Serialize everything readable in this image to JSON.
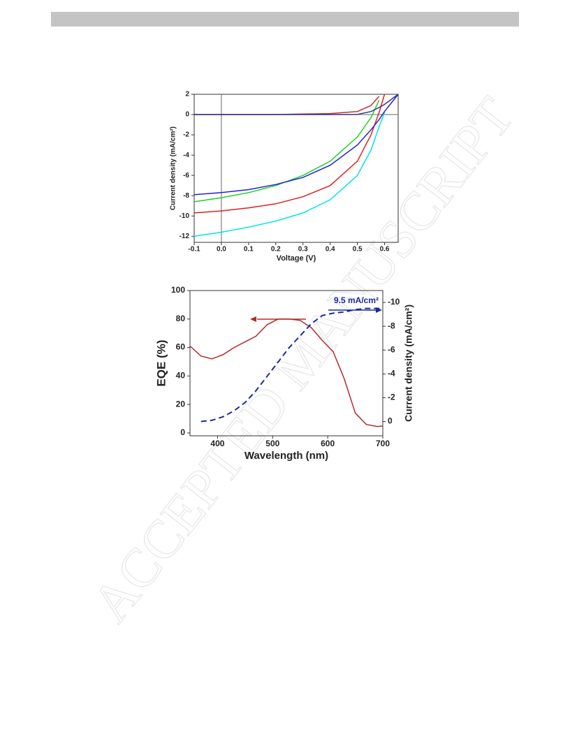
{
  "watermark": "ACCEPTED MANUSCRIPT",
  "chart_data": [
    {
      "type": "line",
      "x_label": "Voltage (V)",
      "y_label": "Current density (mA/cm²)",
      "x": [
        -0.1,
        0,
        0.1,
        0.2,
        0.3,
        0.4,
        0.5,
        0.55,
        0.58,
        0.6,
        0.65
      ],
      "series": [
        {
          "color": "#00e5e5",
          "values": [
            -12.0,
            -11.6,
            -11.1,
            -10.5,
            -9.7,
            -8.4,
            -6.0,
            -3.5,
            -1.2,
            0.2,
            null
          ]
        },
        {
          "color": "#e02020",
          "values": [
            -9.7,
            -9.5,
            -9.2,
            -8.8,
            -8.1,
            -7.0,
            -4.6,
            -2.0,
            0.2,
            2.0,
            null
          ]
        },
        {
          "color": "#20d020",
          "values": [
            -8.6,
            -8.2,
            -7.7,
            -7.0,
            -6.0,
            -4.6,
            -2.2,
            -0.3,
            1.4,
            null,
            null
          ]
        },
        {
          "color": "#2020e0",
          "values": [
            -7.9,
            -7.7,
            -7.4,
            -6.9,
            -6.2,
            -5.0,
            -3.0,
            -1.5,
            -0.5,
            0.3,
            2.0
          ]
        },
        {
          "color": "#c03030",
          "values": [
            0,
            0,
            0,
            0,
            0.05,
            0.1,
            0.3,
            0.9,
            1.8,
            null,
            null
          ]
        },
        {
          "color": "#303090",
          "values": [
            0,
            0,
            0,
            0,
            0,
            0,
            0.02,
            0.3,
            0.7,
            1.0,
            2.0
          ]
        }
      ],
      "xlim": [
        -0.1,
        0.65
      ],
      "xticks": [
        -0.1,
        {
          "value": 0,
          "label": "0.0"
        },
        0.1,
        0.2,
        0.3,
        0.4,
        0.5,
        0.6
      ],
      "ylim": [
        -12.6,
        2
      ],
      "yticks": [
        -12,
        -10,
        -8,
        -6,
        -4,
        -2,
        0,
        2
      ],
      "zero_lines": true
    },
    {
      "type": "line",
      "x_label": "Wavelength (nm)",
      "y_label": "EQE (%)",
      "y2_label": "Current density (mA/cm²)",
      "annotation": "9.5 mA/cm²",
      "x": [
        350,
        370,
        390,
        410,
        430,
        450,
        470,
        490,
        510,
        530,
        550,
        570,
        590,
        610,
        630,
        650,
        670,
        690,
        700
      ],
      "series": [
        {
          "color": "#b52a2a",
          "values": [
            61,
            54,
            52,
            55,
            60,
            64,
            68,
            76,
            80,
            80,
            79,
            74,
            65,
            57,
            38,
            14,
            6,
            4.5,
            5
          ]
        },
        {
          "color": "#1c2a99",
          "axis": "y2",
          "dashed": true,
          "values": [
            null,
            0,
            -0.1,
            -0.4,
            -0.9,
            -1.6,
            -2.6,
            -3.8,
            -5.0,
            -6.2,
            -7.2,
            -8.2,
            -8.9,
            -9.1,
            -9.2,
            -9.4,
            -9.5,
            -9.5,
            -9.5
          ]
        }
      ],
      "xlim": [
        350,
        700
      ],
      "xticks": [
        400,
        500,
        600,
        700
      ],
      "ylim": [
        -2,
        100
      ],
      "yticks": [
        0,
        20,
        40,
        60,
        80,
        100
      ],
      "y2lim": [
        1.2,
        -11
      ],
      "y2ticks": [
        0,
        -2,
        -4,
        -6,
        -8,
        -10
      ]
    }
  ]
}
